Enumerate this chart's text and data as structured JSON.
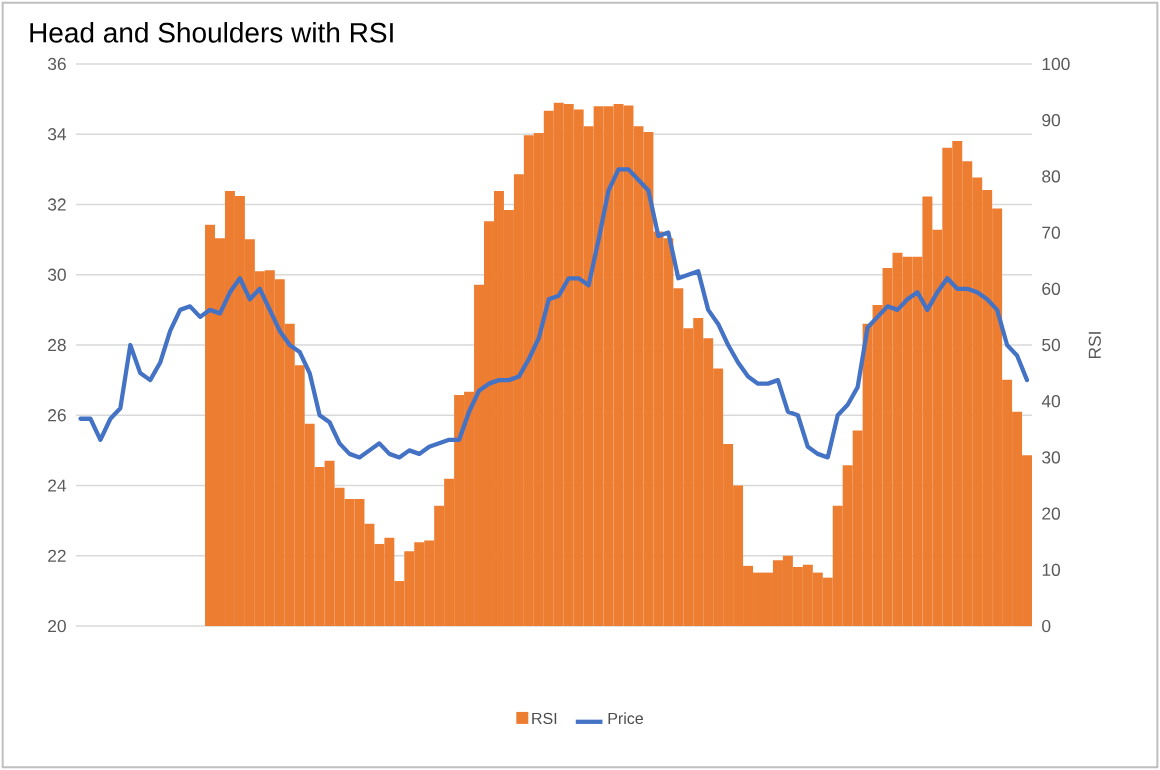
{
  "chart_data": {
    "type": "bar",
    "title": "Head and Shoulders with RSI",
    "y2label": "RSI",
    "categories": [
      null,
      null,
      null,
      null,
      null,
      null,
      null,
      null,
      null,
      null,
      null,
      null,
      null,
      null,
      null,
      null,
      null,
      null,
      null,
      null,
      null,
      null,
      null,
      null,
      null,
      null,
      null,
      null,
      null,
      null,
      null,
      null,
      null,
      null,
      null,
      null,
      null,
      null,
      null,
      null,
      null,
      null,
      null,
      null,
      null,
      null,
      null,
      null,
      null,
      null,
      null,
      null,
      null,
      null,
      null,
      null,
      null,
      null,
      null,
      null,
      null,
      null,
      null,
      null,
      null,
      null,
      null,
      null,
      null,
      null,
      null,
      null,
      null,
      null,
      null,
      null,
      null,
      null,
      null,
      null,
      null,
      null,
      null,
      null,
      null,
      null,
      null,
      null,
      null,
      null,
      null,
      null,
      null,
      null,
      null,
      null
    ],
    "series": [
      {
        "name": "RSI",
        "axis": "y2",
        "color": "#ed7d31",
        "values": [
          null,
          null,
          null,
          null,
          null,
          null,
          null,
          null,
          null,
          null,
          null,
          null,
          null,
          71.4,
          69.0,
          77.4,
          76.5,
          68.8,
          63.1,
          63.3,
          61.7,
          53.8,
          46.4,
          36.0,
          28.3,
          29.4,
          24.6,
          22.6,
          22.6,
          18.2,
          14.6,
          15.7,
          8.0,
          13.3,
          14.9,
          15.2,
          21.4,
          26.2,
          41.1,
          41.7,
          60.7,
          72.0,
          77.4,
          74.0,
          80.4,
          87.3,
          87.7,
          91.7,
          93.1,
          92.9,
          91.9,
          88.9,
          92.5,
          92.5,
          92.9,
          92.6,
          88.9,
          87.9,
          70.2,
          69.0,
          60.1,
          53.0,
          54.8,
          51.2,
          45.8,
          32.4,
          25.0,
          10.7,
          9.5,
          9.5,
          11.7,
          12.5,
          10.5,
          10.9,
          9.5,
          8.6,
          21.4,
          28.6,
          34.8,
          53.8,
          57.1,
          63.7,
          66.4,
          65.7,
          65.7,
          76.4,
          70.5,
          85.1,
          86.3,
          82.7,
          79.8,
          77.6,
          74.3,
          43.8,
          38.1,
          30.4
        ]
      },
      {
        "name": "Price",
        "type": "line",
        "color": "#4472c4",
        "values": [
          25.9,
          25.9,
          25.3,
          25.9,
          26.2,
          28.0,
          27.2,
          27.0,
          27.5,
          28.4,
          29.0,
          29.1,
          28.8,
          29.0,
          28.9,
          29.5,
          29.9,
          29.3,
          29.6,
          29.0,
          28.4,
          28.0,
          27.8,
          27.2,
          26.0,
          25.8,
          25.2,
          24.9,
          24.8,
          25.0,
          25.2,
          24.9,
          24.8,
          25.0,
          24.9,
          25.1,
          25.2,
          25.3,
          25.3,
          26.1,
          26.7,
          26.9,
          27.0,
          27.0,
          27.1,
          27.6,
          28.2,
          29.3,
          29.4,
          29.9,
          29.9,
          29.7,
          31.0,
          32.4,
          33.0,
          33.0,
          32.7,
          32.4,
          31.1,
          31.2,
          29.9,
          30.0,
          30.1,
          29.0,
          28.6,
          28.0,
          27.5,
          27.1,
          26.9,
          26.9,
          27.0,
          26.1,
          26.0,
          25.1,
          24.9,
          24.8,
          26.0,
          26.3,
          26.8,
          28.5,
          28.8,
          29.1,
          29.0,
          29.3,
          29.5,
          29.0,
          29.5,
          29.9,
          29.6,
          29.6,
          29.5,
          29.3,
          29.0,
          28.0,
          27.7,
          27.0
        ]
      }
    ],
    "ylim": [
      20,
      36
    ],
    "yticks": [
      20,
      22,
      24,
      26,
      28,
      30,
      32,
      34,
      36
    ],
    "y2lim": [
      0,
      100
    ],
    "y2ticks": [
      0,
      10,
      20,
      30,
      40,
      50,
      60,
      70,
      80,
      90,
      100
    ],
    "grid": "y",
    "legend": "bottom",
    "line_style": "solid",
    "marker": "none"
  }
}
